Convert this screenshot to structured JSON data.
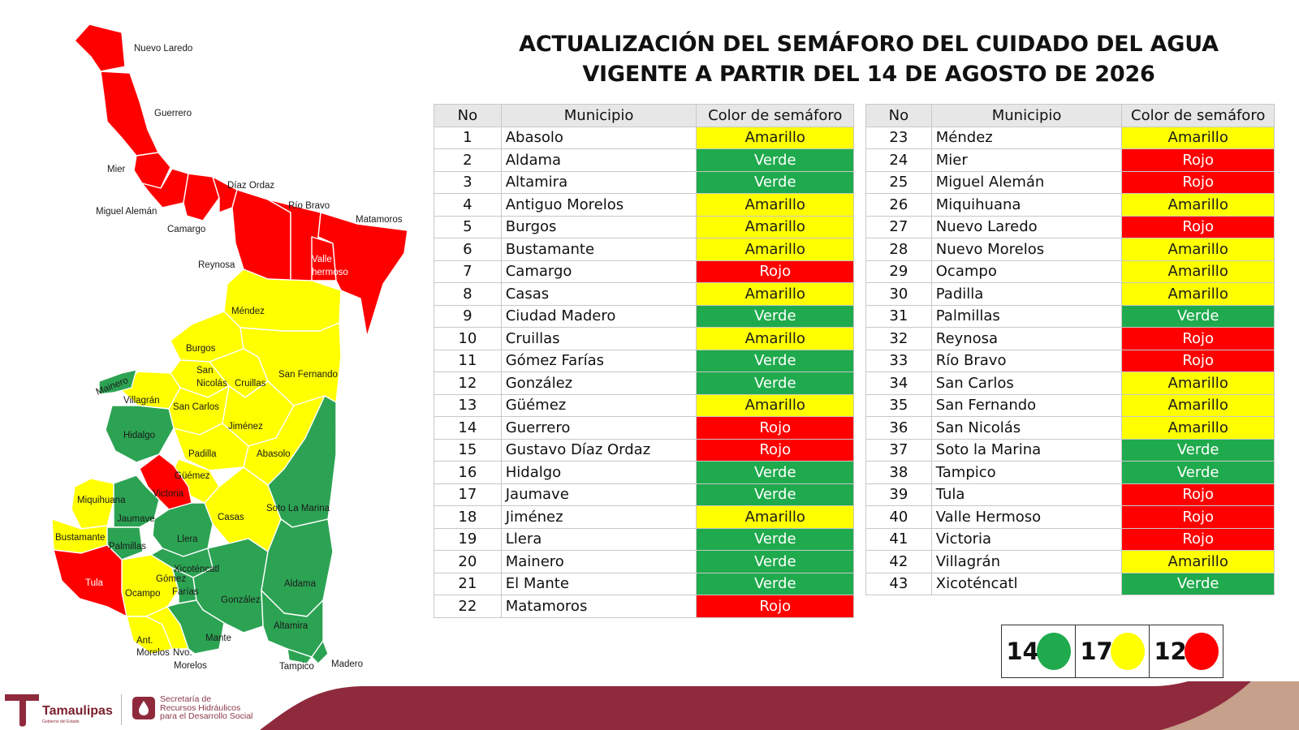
{
  "title": {
    "line1": "ACTUALIZACIÓN DEL SEMÁFORO DEL CUIDADO DEL AGUA",
    "line2": "VIGENTE A PARTIR DEL 14 DE AGOSTO DE 2026"
  },
  "table_headers": {
    "no": "No",
    "municipio": "Municipio",
    "color": "Color de semáforo"
  },
  "colors": {
    "verde": "#1faa4d",
    "amarillo": "#ffff00",
    "rojo": "#ff0000",
    "footer": "#8f2a3d"
  },
  "table_left": [
    {
      "no": "1",
      "municipio": "Abasolo",
      "color": "Amarillo"
    },
    {
      "no": "2",
      "municipio": "Aldama",
      "color": "Verde"
    },
    {
      "no": "3",
      "municipio": "Altamira",
      "color": "Verde"
    },
    {
      "no": "4",
      "municipio": "Antiguo Morelos",
      "color": "Amarillo"
    },
    {
      "no": "5",
      "municipio": "Burgos",
      "color": "Amarillo"
    },
    {
      "no": "6",
      "municipio": "Bustamante",
      "color": "Amarillo"
    },
    {
      "no": "7",
      "municipio": "Camargo",
      "color": "Rojo"
    },
    {
      "no": "8",
      "municipio": "Casas",
      "color": "Amarillo"
    },
    {
      "no": "9",
      "municipio": "Ciudad Madero",
      "color": "Verde"
    },
    {
      "no": "10",
      "municipio": "Cruillas",
      "color": "Amarillo"
    },
    {
      "no": "11",
      "municipio": "Gómez Farías",
      "color": "Verde"
    },
    {
      "no": "12",
      "municipio": "González",
      "color": "Verde"
    },
    {
      "no": "13",
      "municipio": "Güémez",
      "color": "Amarillo"
    },
    {
      "no": "14",
      "municipio": "Guerrero",
      "color": "Rojo"
    },
    {
      "no": "15",
      "municipio": "Gustavo Díaz Ordaz",
      "color": "Rojo"
    },
    {
      "no": "16",
      "municipio": "Hidalgo",
      "color": "Verde"
    },
    {
      "no": "17",
      "municipio": "Jaumave",
      "color": "Verde"
    },
    {
      "no": "18",
      "municipio": "Jiménez",
      "color": "Amarillo"
    },
    {
      "no": "19",
      "municipio": "Llera",
      "color": "Verde"
    },
    {
      "no": "20",
      "municipio": "Mainero",
      "color": "Verde"
    },
    {
      "no": "21",
      "municipio": "El Mante",
      "color": "Verde"
    },
    {
      "no": "22",
      "municipio": "Matamoros",
      "color": "Rojo"
    }
  ],
  "table_right": [
    {
      "no": "23",
      "municipio": "Méndez",
      "color": "Amarillo"
    },
    {
      "no": "24",
      "municipio": "Mier",
      "color": "Rojo"
    },
    {
      "no": "25",
      "municipio": "Miguel Alemán",
      "color": "Rojo"
    },
    {
      "no": "26",
      "municipio": "Miquihuana",
      "color": "Amarillo"
    },
    {
      "no": "27",
      "municipio": "Nuevo Laredo",
      "color": "Rojo"
    },
    {
      "no": "28",
      "municipio": "Nuevo Morelos",
      "color": "Amarillo"
    },
    {
      "no": "29",
      "municipio": "Ocampo",
      "color": "Amarillo"
    },
    {
      "no": "30",
      "municipio": "Padilla",
      "color": "Amarillo"
    },
    {
      "no": "31",
      "municipio": "Palmillas",
      "color": "Verde"
    },
    {
      "no": "32",
      "municipio": "Reynosa",
      "color": "Rojo"
    },
    {
      "no": "33",
      "municipio": "Río Bravo",
      "color": "Rojo"
    },
    {
      "no": "34",
      "municipio": "San Carlos",
      "color": "Amarillo"
    },
    {
      "no": "35",
      "municipio": "San Fernando",
      "color": "Amarillo"
    },
    {
      "no": "36",
      "municipio": "San Nicolás",
      "color": "Amarillo"
    },
    {
      "no": "37",
      "municipio": "Soto la Marina",
      "color": "Verde"
    },
    {
      "no": "38",
      "municipio": "Tampico",
      "color": "Verde"
    },
    {
      "no": "39",
      "municipio": "Tula",
      "color": "Rojo"
    },
    {
      "no": "40",
      "municipio": "Valle Hermoso",
      "color": "Rojo"
    },
    {
      "no": "41",
      "municipio": "Victoria",
      "color": "Rojo"
    },
    {
      "no": "42",
      "municipio": "Villagrán",
      "color": "Amarillo"
    },
    {
      "no": "43",
      "municipio": "Xicoténcatl",
      "color": "Verde"
    }
  ],
  "legend": [
    {
      "count": "14",
      "color": "#1faa4d",
      "name": "Verde"
    },
    {
      "count": "17",
      "color": "#ffff00",
      "name": "Amarillo"
    },
    {
      "count": "12",
      "color": "#ff0000",
      "name": "Rojo"
    }
  ],
  "map_labels": {
    "nuevo_laredo": "Nuevo Laredo",
    "guerrero": "Guerrero",
    "mier": "Mier",
    "diaz_ordaz": "Díaz Ordaz",
    "rio_bravo": "Río Bravo",
    "miguel_aleman": "Miguel Alemán",
    "matamoros": "Matamoros",
    "camargo": "Camargo",
    "reynosa": "Reynosa",
    "valle_1": "Valle",
    "valle_2": "hermoso",
    "mendez": "Méndez",
    "burgos": "Burgos",
    "san_1": "San",
    "nicolas": "Nicolás",
    "cruillas": "Cruillas",
    "san_fernando": "San Fernando",
    "mainero": "Mainero",
    "villagran": "Villagrán",
    "san_carlos": "San Carlos",
    "jimenez": "Jiménez",
    "hidalgo": "Hidalgo",
    "padilla": "Padilla",
    "abasolo": "Abasolo",
    "guemez": "Güémez",
    "victoria": "Victoria",
    "miquihuana": "Miquihuana",
    "soto_la_marina": "Soto La Marina",
    "jaumave": "Jaumave",
    "casas": "Casas",
    "bustamante": "Bustamante",
    "palmillas": "Palmillas",
    "llera": "Llera",
    "xicotencatl": "Xicoténcatl",
    "tula": "Tula",
    "gomez": "Gómez",
    "farias": "Farías",
    "ocampo": "Ocampo",
    "aldama": "Aldama",
    "gonzalez": "González",
    "altamira": "Altamira",
    "mante": "Mante",
    "ant": "Ant.",
    "morelos_a": "Morelos",
    "nvo": "Nvo.",
    "morelos_n": "Morelos",
    "tampico": "Tampico",
    "madero": "Madero"
  },
  "footer": {
    "logo1": "Tamaulipas",
    "logo1_sub": "Gobierno del Estado",
    "logo2_l1": "Secretaría de",
    "logo2_l2": "Recursos Hidráulicos",
    "logo2_l3": "para el Desarrollo Social"
  }
}
